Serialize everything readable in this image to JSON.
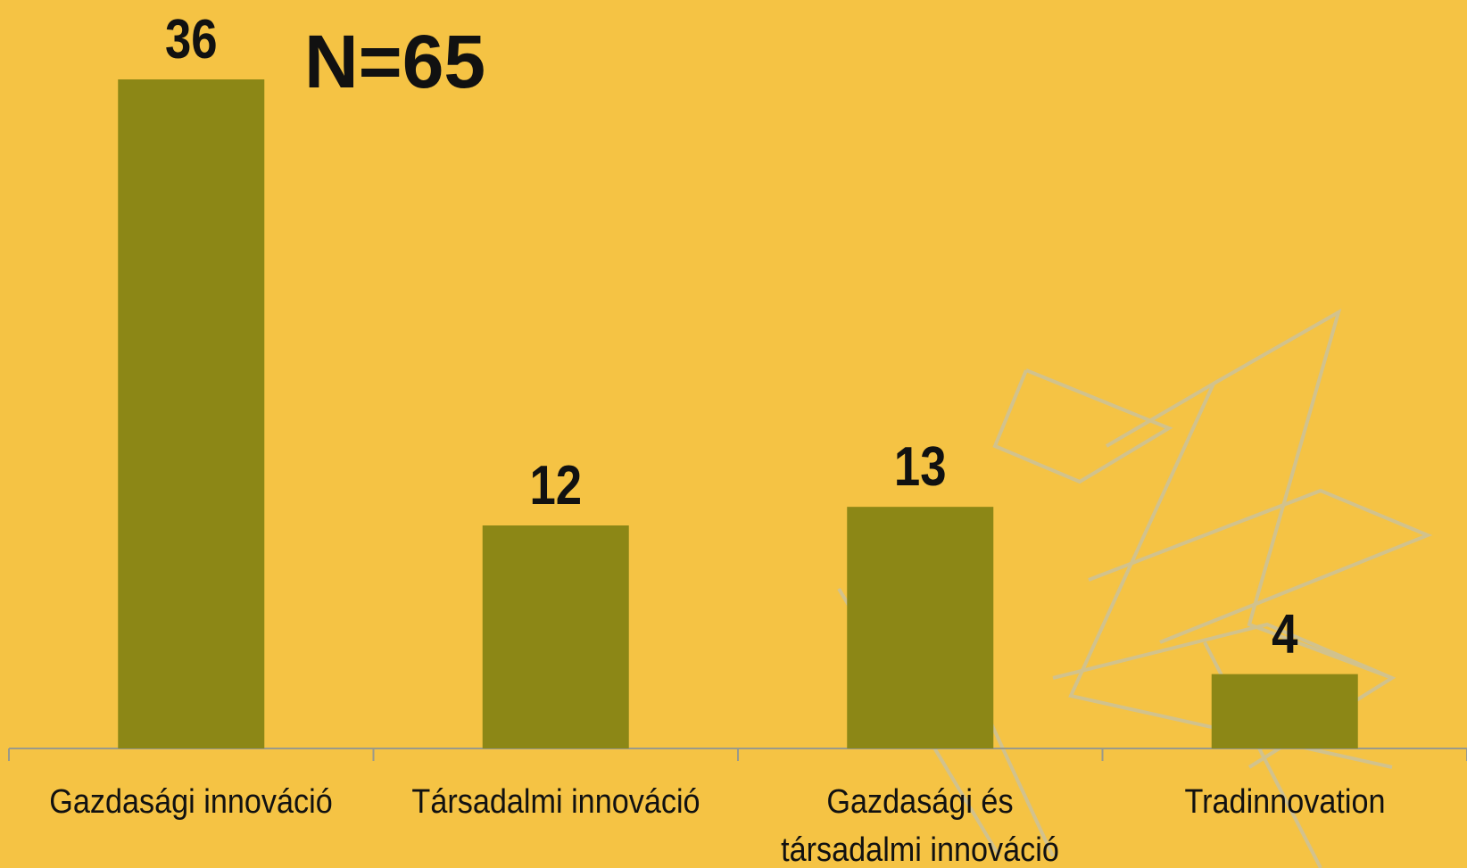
{
  "chart_data": {
    "type": "bar",
    "title": "N=65",
    "categories": [
      "Gazdasági innováció",
      "Társadalmi innováció",
      "Gazdasági és társadalmi innováció",
      "Tradinnovation"
    ],
    "values": [
      36,
      12,
      13,
      4
    ],
    "color": "#8c8716"
  }
}
